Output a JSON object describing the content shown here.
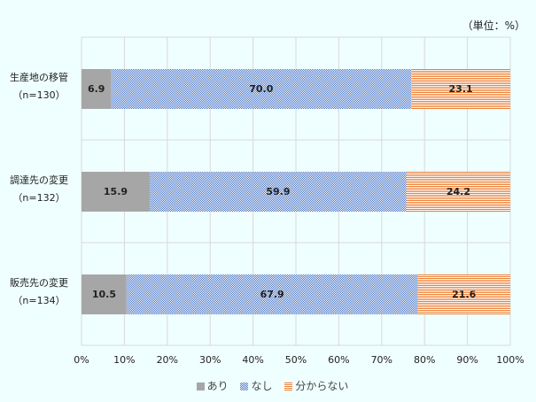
{
  "chart_data": {
    "type": "bar",
    "orientation": "horizontal-stacked-100",
    "unit_label": "（単位：%）",
    "categories": [
      {
        "name": "生産地の移管",
        "n": "（n=130）"
      },
      {
        "name": "調達先の変更",
        "n": "（n=132）"
      },
      {
        "name": "販売先の変更",
        "n": "（n=134）"
      }
    ],
    "series": [
      {
        "name": "あり",
        "values": [
          6.9,
          15.9,
          10.5
        ],
        "color": "#a6a6a6"
      },
      {
        "name": "なし",
        "values": [
          70.0,
          59.9,
          67.9
        ],
        "color": "#4472c4"
      },
      {
        "name": "分からない",
        "values": [
          23.1,
          24.2,
          21.6
        ],
        "color": "#ed7d31"
      }
    ],
    "xticks": [
      "0%",
      "10%",
      "20%",
      "30%",
      "40%",
      "50%",
      "60%",
      "70%",
      "80%",
      "90%",
      "100%"
    ],
    "xlim": [
      0,
      100
    ],
    "grid": true,
    "legend_position": "bottom"
  }
}
